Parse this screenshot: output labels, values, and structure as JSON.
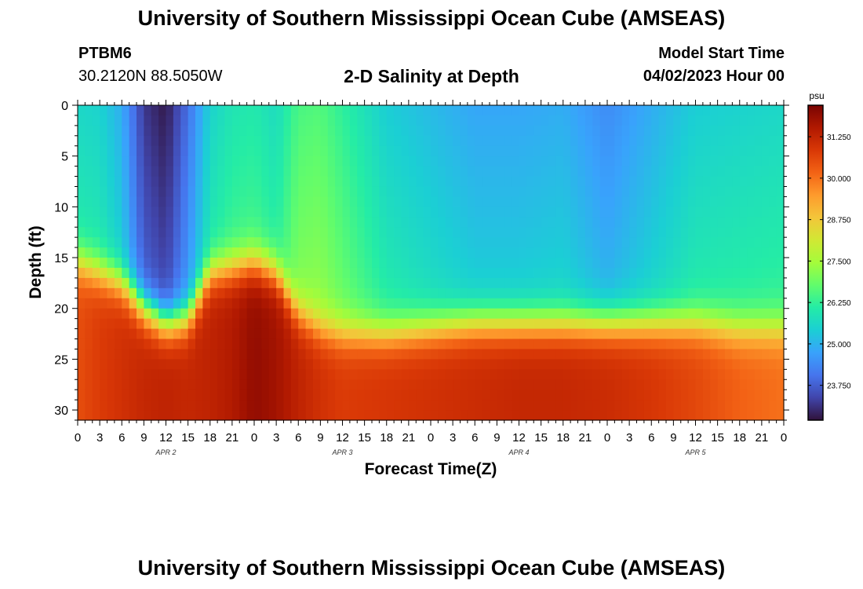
{
  "header": {
    "title": "University of Southern Mississippi Ocean Cube (AMSEAS)",
    "station_name": "PTBM6",
    "station_coords": "30.2120N  88.5050W",
    "subtitle": "2-D Salinity at Depth",
    "model_start_label": "Model Start Time",
    "model_start_value": "04/02/2023 Hour 00"
  },
  "footer": {
    "title": "University of Southern Mississippi Ocean Cube (AMSEAS)"
  },
  "colors": {
    "axis": "#000000",
    "colormap": [
      "#30123b",
      "#4145ab",
      "#4675ed",
      "#39a2fc",
      "#1bcfd4",
      "#24eca6",
      "#61fc6c",
      "#a4fc3b",
      "#d1e834",
      "#f3c63a",
      "#fe9b2d",
      "#f36315",
      "#d93806",
      "#b11901",
      "#7a0402"
    ]
  },
  "chart_data": {
    "type": "heatmap",
    "title": "2-D Salinity at Depth",
    "xlabel": "Forecast Time(Z)",
    "ylabel": "Depth (ft)",
    "xlim": [
      0,
      96
    ],
    "ylim": [
      31,
      0
    ],
    "x_ticks": [
      0,
      3,
      6,
      9,
      12,
      15,
      18,
      21,
      24,
      27,
      30,
      33,
      36,
      39,
      42,
      45,
      48,
      51,
      54,
      57,
      60,
      63,
      66,
      69,
      72,
      75,
      78,
      81,
      84,
      87,
      90,
      93,
      96
    ],
    "x_tick_labels": [
      "0",
      "3",
      "6",
      "9",
      "12",
      "15",
      "18",
      "21",
      "0",
      "3",
      "6",
      "9",
      "12",
      "15",
      "18",
      "21",
      "0",
      "3",
      "6",
      "9",
      "12",
      "15",
      "18",
      "21",
      "0",
      "3",
      "6",
      "9",
      "12",
      "15",
      "18",
      "21",
      "0"
    ],
    "day_labels": [
      {
        "x": 12,
        "label": "APR 2"
      },
      {
        "x": 36,
        "label": "APR 3"
      },
      {
        "x": 60,
        "label": "APR 4"
      },
      {
        "x": 84,
        "label": "APR 5"
      }
    ],
    "y_ticks": [
      0,
      5,
      10,
      15,
      20,
      25,
      30
    ],
    "y_tick_labels": [
      "0",
      "5",
      "10",
      "15",
      "20",
      "25",
      "30"
    ],
    "colorbar": {
      "unit": "psu",
      "min": 22.7,
      "max": 32.2,
      "ticks": [
        23.75,
        25.0,
        26.25,
        27.5,
        28.75,
        30.0,
        31.25
      ],
      "tick_labels": [
        "23.750",
        "25.000",
        "26.250",
        "27.500",
        "28.750",
        "30.000",
        "31.250"
      ]
    },
    "grid": false,
    "time_step_hours": 1,
    "depth_step_ft": 1,
    "salinity_profiles": [
      {
        "time": 0,
        "surface": 25.6,
        "halocline_depth": 15.5,
        "deep": 30.5
      },
      {
        "time": 3,
        "surface": 25.5,
        "halocline_depth": 16.5,
        "deep": 30.8
      },
      {
        "time": 6,
        "surface": 24.9,
        "halocline_depth": 17.5,
        "deep": 31.0
      },
      {
        "time": 9,
        "surface": 23.2,
        "halocline_depth": 20.0,
        "deep": 31.2
      },
      {
        "time": 12,
        "surface": 22.8,
        "halocline_depth": 21.5,
        "deep": 31.3
      },
      {
        "time": 15,
        "surface": 24.0,
        "halocline_depth": 21.0,
        "deep": 31.2
      },
      {
        "time": 18,
        "surface": 25.5,
        "halocline_depth": 16.5,
        "deep": 31.3
      },
      {
        "time": 21,
        "surface": 25.9,
        "halocline_depth": 16.0,
        "deep": 31.5
      },
      {
        "time": 24,
        "surface": 26.0,
        "halocline_depth": 15.5,
        "deep": 31.9
      },
      {
        "time": 27,
        "surface": 25.7,
        "halocline_depth": 16.5,
        "deep": 31.7
      },
      {
        "time": 30,
        "surface": 26.5,
        "halocline_depth": 20.5,
        "deep": 31.3
      },
      {
        "time": 33,
        "surface": 26.6,
        "halocline_depth": 22.0,
        "deep": 31.0
      },
      {
        "time": 36,
        "surface": 26.2,
        "halocline_depth": 22.5,
        "deep": 30.8
      },
      {
        "time": 42,
        "surface": 25.4,
        "halocline_depth": 22.5,
        "deep": 30.9
      },
      {
        "time": 48,
        "surface": 25.1,
        "halocline_depth": 22.0,
        "deep": 31.0
      },
      {
        "time": 54,
        "surface": 24.8,
        "halocline_depth": 21.5,
        "deep": 31.1
      },
      {
        "time": 60,
        "surface": 24.8,
        "halocline_depth": 21.5,
        "deep": 31.2
      },
      {
        "time": 66,
        "surface": 24.9,
        "halocline_depth": 21.5,
        "deep": 31.2
      },
      {
        "time": 72,
        "surface": 24.4,
        "halocline_depth": 21.5,
        "deep": 31.1
      },
      {
        "time": 78,
        "surface": 24.9,
        "halocline_depth": 21.5,
        "deep": 30.9
      },
      {
        "time": 84,
        "surface": 25.4,
        "halocline_depth": 21.5,
        "deep": 30.6
      },
      {
        "time": 90,
        "surface": 25.5,
        "halocline_depth": 22.0,
        "deep": 30.2
      },
      {
        "time": 96,
        "surface": 25.6,
        "halocline_depth": 22.0,
        "deep": 30.0
      }
    ]
  }
}
